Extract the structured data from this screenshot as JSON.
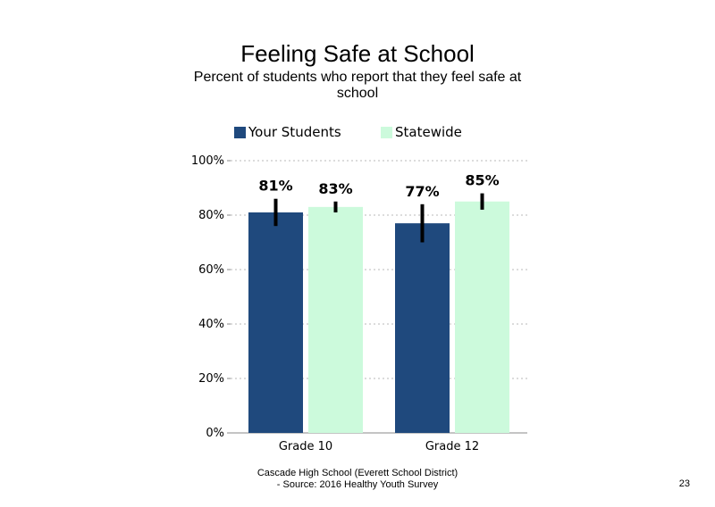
{
  "chart_data": {
    "type": "bar",
    "title": "Feeling Safe at School",
    "subtitle": "Percent of students who report that they feel safe at school",
    "categories": [
      "Grade 10",
      "Grade 12"
    ],
    "series": [
      {
        "name": "Your Students",
        "color": "#1f497d",
        "values": [
          81,
          77
        ],
        "labels": [
          "81%",
          "77%"
        ],
        "error_low": [
          76,
          70
        ],
        "error_high": [
          86,
          84
        ]
      },
      {
        "name": "Statewide",
        "color": "#ccfadc",
        "values": [
          83,
          85
        ],
        "labels": [
          "83%",
          "85%"
        ],
        "error_low": [
          81,
          82
        ],
        "error_high": [
          85,
          88
        ]
      }
    ],
    "y_ticks": [
      0,
      20,
      40,
      60,
      80,
      100
    ],
    "y_tick_labels": [
      "0%",
      "20%",
      "40%",
      "60%",
      "80%",
      "100%"
    ],
    "ylim": [
      0,
      100
    ],
    "gridlines": "dashed",
    "legend_position": "top",
    "error_bars": true
  },
  "footer": {
    "line1": "Cascade High School (Everett School District)",
    "line2": "- Source: 2016 Healthy Youth Survey"
  },
  "page_number": "23"
}
